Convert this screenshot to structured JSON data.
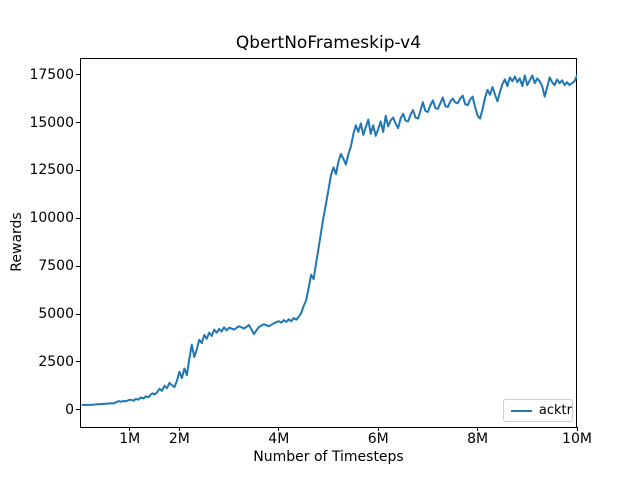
{
  "figure": {
    "background": "#ffffff",
    "text_color": "#000000",
    "spine_color": "#000000",
    "legend_border_color": "#cccccc"
  },
  "chart_data": {
    "type": "line",
    "title": "QbertNoFrameskip-v4",
    "xlabel": "Number of Timesteps",
    "ylabel": "Rewards",
    "grid": false,
    "legend_position": "lower right",
    "xlim_millions": [
      0,
      10
    ],
    "ylim": [
      -900,
      18370
    ],
    "x_ticks": [
      {
        "value_millions": 1,
        "label": "1M"
      },
      {
        "value_millions": 2,
        "label": "2M"
      },
      {
        "value_millions": 4,
        "label": "4M"
      },
      {
        "value_millions": 6,
        "label": "6M"
      },
      {
        "value_millions": 8,
        "label": "8M"
      },
      {
        "value_millions": 10,
        "label": "10M"
      }
    ],
    "y_ticks": [
      {
        "value": 0,
        "label": "0"
      },
      {
        "value": 2500,
        "label": "2500"
      },
      {
        "value": 5000,
        "label": "5000"
      },
      {
        "value": 7500,
        "label": "7500"
      },
      {
        "value": 10000,
        "label": "10000"
      },
      {
        "value": 12500,
        "label": "12500"
      },
      {
        "value": 15000,
        "label": "15000"
      },
      {
        "value": 17500,
        "label": "17500"
      }
    ],
    "series": [
      {
        "name": "acktr",
        "color": "#1f77b4",
        "line_width": 2,
        "x_millions": [
          0.05,
          0.15,
          0.25,
          0.35,
          0.45,
          0.55,
          0.62,
          0.68,
          0.72,
          0.78,
          0.82,
          0.88,
          0.92,
          0.98,
          1.02,
          1.08,
          1.12,
          1.18,
          1.22,
          1.28,
          1.32,
          1.38,
          1.42,
          1.46,
          1.5,
          1.55,
          1.6,
          1.65,
          1.7,
          1.75,
          1.8,
          1.85,
          1.9,
          1.95,
          2.0,
          2.05,
          2.1,
          2.15,
          2.2,
          2.25,
          2.3,
          2.35,
          2.4,
          2.45,
          2.5,
          2.55,
          2.6,
          2.65,
          2.7,
          2.75,
          2.8,
          2.85,
          2.9,
          2.95,
          3.0,
          3.1,
          3.2,
          3.3,
          3.4,
          3.5,
          3.6,
          3.7,
          3.8,
          3.9,
          4.0,
          4.05,
          4.1,
          4.15,
          4.2,
          4.25,
          4.3,
          4.35,
          4.4,
          4.45,
          4.5,
          4.55,
          4.6,
          4.65,
          4.7,
          4.75,
          4.8,
          4.85,
          4.9,
          4.95,
          5.0,
          5.05,
          5.1,
          5.15,
          5.2,
          5.25,
          5.3,
          5.35,
          5.4,
          5.45,
          5.5,
          5.55,
          5.6,
          5.65,
          5.7,
          5.75,
          5.8,
          5.85,
          5.9,
          5.95,
          6.0,
          6.05,
          6.1,
          6.15,
          6.2,
          6.25,
          6.3,
          6.35,
          6.4,
          6.45,
          6.5,
          6.55,
          6.6,
          6.65,
          6.7,
          6.75,
          6.8,
          6.85,
          6.9,
          6.95,
          7.0,
          7.05,
          7.1,
          7.15,
          7.2,
          7.25,
          7.3,
          7.35,
          7.4,
          7.45,
          7.5,
          7.55,
          7.6,
          7.65,
          7.7,
          7.75,
          7.8,
          7.85,
          7.9,
          7.95,
          8.0,
          8.05,
          8.1,
          8.15,
          8.2,
          8.25,
          8.3,
          8.35,
          8.4,
          8.45,
          8.5,
          8.55,
          8.6,
          8.65,
          8.7,
          8.75,
          8.8,
          8.85,
          8.9,
          8.95,
          9.0,
          9.05,
          9.1,
          9.15,
          9.2,
          9.25,
          9.3,
          9.35,
          9.4,
          9.45,
          9.5,
          9.55,
          9.6,
          9.65,
          9.7,
          9.75,
          9.8,
          9.85,
          9.9,
          9.95,
          10.0
        ],
        "y": [
          250,
          255,
          265,
          285,
          300,
          320,
          345,
          330,
          385,
          450,
          415,
          465,
          435,
          505,
          525,
          475,
          565,
          525,
          645,
          595,
          705,
          655,
          785,
          860,
          795,
          905,
          1100,
          985,
          1255,
          1125,
          1405,
          1285,
          1185,
          1505,
          1985,
          1655,
          2155,
          1805,
          2655,
          3405,
          2755,
          3155,
          3655,
          3485,
          3905,
          3705,
          4025,
          3855,
          4185,
          4025,
          4225,
          4085,
          4305,
          4145,
          4285,
          4185,
          4365,
          4245,
          4425,
          3955,
          4325,
          4465,
          4365,
          4515,
          4625,
          4545,
          4685,
          4585,
          4725,
          4625,
          4785,
          4705,
          4855,
          5055,
          5425,
          5705,
          6355,
          7055,
          6825,
          7655,
          8455,
          9255,
          10055,
          10755,
          11505,
          12255,
          12655,
          12305,
          12955,
          13355,
          13105,
          12805,
          13355,
          13755,
          14405,
          14855,
          14505,
          14955,
          14355,
          14755,
          15155,
          14405,
          14855,
          14305,
          14655,
          15055,
          14505,
          15355,
          14805,
          15105,
          15255,
          14955,
          14705,
          15205,
          15455,
          15105,
          15055,
          15405,
          15655,
          15255,
          15205,
          15605,
          16055,
          15605,
          15555,
          15905,
          16155,
          15755,
          15705,
          16005,
          16305,
          15855,
          15805,
          16105,
          16255,
          16055,
          16005,
          16255,
          16405,
          15955,
          15905,
          16205,
          16355,
          15805,
          15355,
          15205,
          15705,
          16305,
          16705,
          16455,
          16855,
          16455,
          16105,
          16605,
          17005,
          17255,
          16905,
          17355,
          17155,
          17405,
          17105,
          17305,
          16905,
          17455,
          16955,
          17205,
          17455,
          17055,
          17305,
          17155,
          16905,
          16355,
          16855,
          17355,
          17105,
          16955,
          17255,
          17055,
          17205,
          16955,
          17105,
          16955,
          17055,
          17155,
          17455
        ]
      }
    ]
  }
}
